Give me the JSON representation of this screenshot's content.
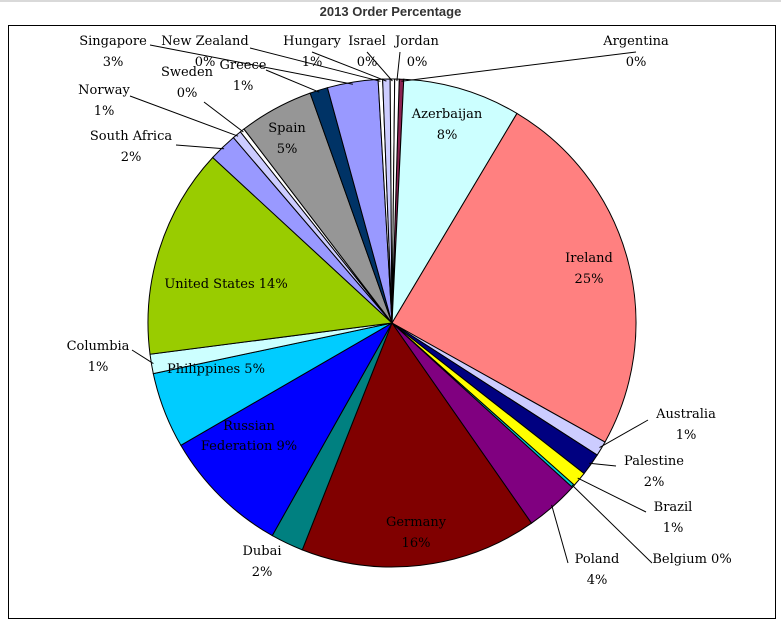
{
  "chart_data": {
    "type": "pie",
    "title": "2013 Order Percentage",
    "start_angle_deg": 88.3,
    "direction": "clockwise",
    "slices": [
      {
        "label": "Argentina",
        "pct": 0.3,
        "display": "0%",
        "color": "#8b2252"
      },
      {
        "label": "Azerbaijan",
        "pct": 7.9,
        "display": "8%",
        "color": "#ccffff"
      },
      {
        "label": "Ireland",
        "pct": 24.9,
        "display": "25%",
        "color": "#ff8080"
      },
      {
        "label": "Australia",
        "pct": 1.0,
        "display": "1%",
        "color": "#ccccff"
      },
      {
        "label": "Palestine",
        "pct": 1.5,
        "display": "2%",
        "color": "#000080"
      },
      {
        "label": "Brazil",
        "pct": 1.0,
        "display": "1%",
        "color": "#ffff00"
      },
      {
        "label": "Belgium",
        "pct": 0.2,
        "display": "0%",
        "color": "#00cccc"
      },
      {
        "label": "Poland",
        "pct": 3.6,
        "display": "4%",
        "color": "#800080"
      },
      {
        "label": "Germany",
        "pct": 15.9,
        "display": "16%",
        "color": "#800000"
      },
      {
        "label": "Dubai",
        "pct": 2.2,
        "display": "2%",
        "color": "#008080"
      },
      {
        "label": "Russian Federation",
        "pct": 8.6,
        "display": "9%",
        "color": "#0000ff"
      },
      {
        "label": "Philippines",
        "pct": 5.1,
        "display": "5%",
        "color": "#00ccff"
      },
      {
        "label": "Columbia",
        "pct": 1.3,
        "display": "1%",
        "color": "#ccffff"
      },
      {
        "label": "United States",
        "pct": 14.1,
        "display": "14%",
        "color": "#99cc00"
      },
      {
        "label": "South Africa",
        "pct": 1.9,
        "display": "2%",
        "color": "#9999ff"
      },
      {
        "label": "Norway",
        "pct": 0.6,
        "display": "1%",
        "color": "#ccccff"
      },
      {
        "label": "Sweden",
        "pct": 0.3,
        "display": "0%",
        "color": "#ffffff"
      },
      {
        "label": "Spain",
        "pct": 5.0,
        "display": "5%",
        "color": "#969696"
      },
      {
        "label": "Greece",
        "pct": 1.2,
        "display": "1%",
        "color": "#003366"
      },
      {
        "label": "Singapore",
        "pct": 3.4,
        "display": "3%",
        "color": "#9999ff"
      },
      {
        "label": "New Zealand",
        "pct": 0.3,
        "display": "0%",
        "color": "#ffffff"
      },
      {
        "label": "Hungary",
        "pct": 0.5,
        "display": "1%",
        "color": "#ccccff"
      },
      {
        "label": "Israel",
        "pct": 0.3,
        "display": "0%",
        "color": "#ffffff"
      },
      {
        "label": "Jordan",
        "pct": 0.3,
        "display": "0%",
        "color": "#ffffff"
      }
    ]
  }
}
